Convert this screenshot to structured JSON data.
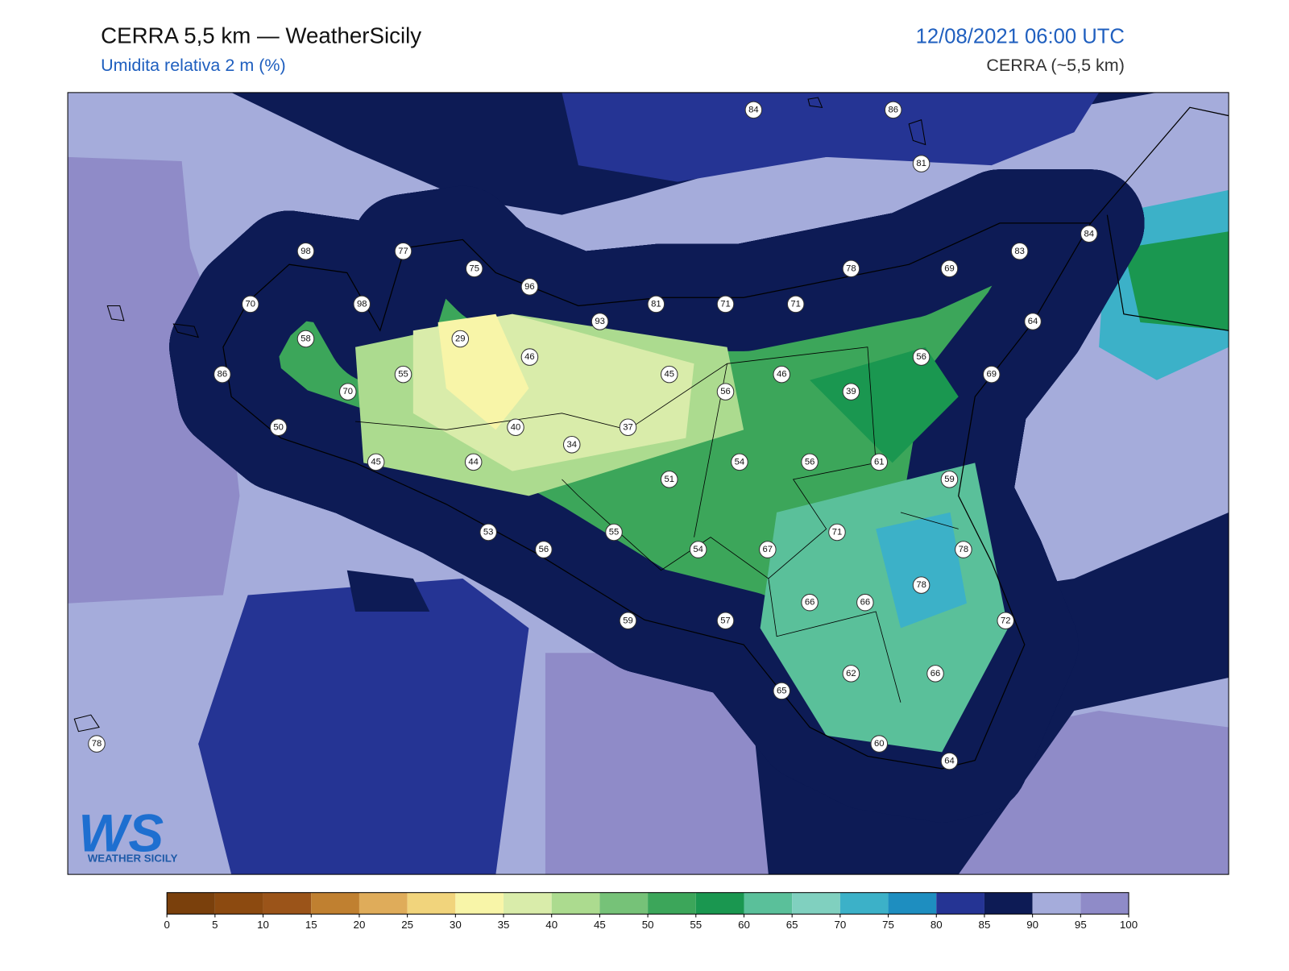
{
  "header": {
    "title": "CERRA 5,5 km — WeatherSicily",
    "subtitle": "Umidita relativa 2 m (%)",
    "datetime": "12/08/2021 06:00 UTC",
    "model": "CERRA (~5,5 km)"
  },
  "stations": [
    84,
    86,
    81,
    98,
    77,
    75,
    96,
    70,
    98,
    93,
    81,
    71,
    71,
    78,
    69,
    83,
    84,
    64,
    58,
    29,
    46,
    86,
    55,
    70,
    45,
    56,
    46,
    39,
    56,
    69,
    50,
    40,
    37,
    34,
    45,
    44,
    51,
    54,
    56,
    61,
    59,
    53,
    56,
    55,
    54,
    67,
    71,
    78,
    78,
    66,
    66,
    72,
    59,
    57,
    62,
    66,
    65,
    60,
    64,
    78
  ],
  "colorbar": {
    "ticks": [
      0,
      5,
      10,
      15,
      20,
      25,
      30,
      35,
      40,
      45,
      50,
      55,
      60,
      65,
      70,
      75,
      80,
      85,
      90,
      95,
      100
    ],
    "colors": [
      "#7a400c",
      "#8c4a10",
      "#9b5419",
      "#c08030",
      "#dfac5a",
      "#f1d47c",
      "#f8f5a8",
      "#d9ecaa",
      "#acdb8f",
      "#76c278",
      "#3ca65a",
      "#1a9750",
      "#5ac09a",
      "#80d0bf",
      "#3cb1c8",
      "#1e8ec0",
      "#253494",
      "#0d1b55",
      "#a5acdb",
      "#8f8bc8"
    ]
  },
  "logo": {
    "initials": "WS",
    "text": "WEATHER SICILY"
  }
}
